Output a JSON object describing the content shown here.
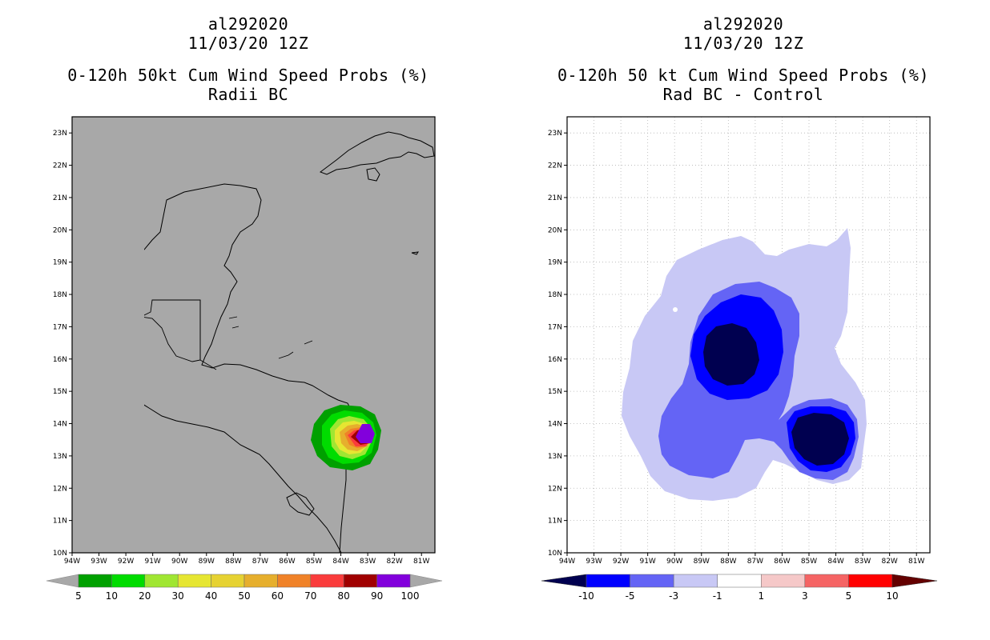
{
  "left": {
    "title": {
      "storm": "al292020",
      "date": "11/03/20 12Z",
      "product": "0-120h 50kt Cum Wind Speed Probs (%)",
      "subtitle": "Radii BC"
    },
    "colorbar": {
      "labels": [
        "5",
        "10",
        "20",
        "30",
        "40",
        "50",
        "60",
        "70",
        "80",
        "90",
        "100"
      ],
      "colors": [
        "#00a000",
        "#00dc00",
        "#a0e632",
        "#e6e632",
        "#e6d232",
        "#e6af2d",
        "#f08228",
        "#fa3c3c",
        "#a00000",
        "#8200dc"
      ]
    },
    "map_background": "#a8a8a8"
  },
  "right": {
    "title": {
      "storm": "al292020",
      "date": "11/03/20 12Z",
      "product": "0-120h 50 kt Cum Wind Speed Probs (%)",
      "subtitle": "Rad BC - Control"
    },
    "colorbar": {
      "labels": [
        "-10",
        "-5",
        "-3",
        "-1",
        "1",
        "3",
        "5",
        "10"
      ],
      "colors": [
        "#000050",
        "#0000ff",
        "#6464f5",
        "#c8c8f5",
        "#ffffff",
        "#f5c8c8",
        "#f56464",
        "#ff0000",
        "#640000"
      ]
    },
    "map_background": "#ffffff"
  },
  "axes": {
    "lat_labels": [
      "10N",
      "11N",
      "12N",
      "13N",
      "14N",
      "15N",
      "16N",
      "17N",
      "18N",
      "19N",
      "20N",
      "21N",
      "22N",
      "23N"
    ],
    "lon_labels": [
      "94W",
      "93W",
      "92W",
      "91W",
      "90W",
      "89W",
      "88W",
      "87W",
      "86W",
      "85W",
      "84W",
      "83W",
      "82W",
      "81W"
    ]
  }
}
